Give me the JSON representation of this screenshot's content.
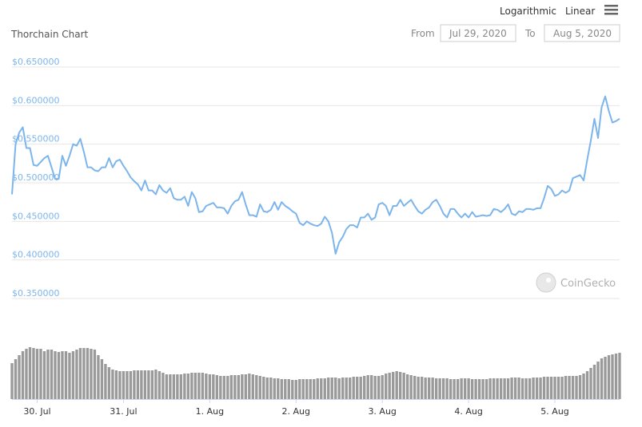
{
  "chart_data": {
    "type": "line",
    "title": "Thorchain Chart",
    "controls": {
      "scales": [
        "Logarithmic",
        "Linear"
      ],
      "from_label": "From",
      "from": "Jul 29, 2020",
      "to_label": "To",
      "to": "Aug 5, 2020"
    },
    "watermark": "CoinGecko",
    "color": "#7cb5ec",
    "ylim": [
      0.35,
      0.65
    ],
    "yticks": [
      {
        "value": 0.65,
        "label": "$0.650000"
      },
      {
        "value": 0.6,
        "label": "$0.600000"
      },
      {
        "value": 0.55,
        "label": "$0.550000"
      },
      {
        "value": 0.5,
        "label": "$0.500000"
      },
      {
        "value": 0.45,
        "label": "$0.450000"
      },
      {
        "value": 0.4,
        "label": "$0.400000"
      },
      {
        "value": 0.35,
        "label": "$0.350000"
      }
    ],
    "grid": true,
    "xlim": [
      0,
      169
    ],
    "xticks": [
      {
        "value": 7,
        "label": "30. Jul"
      },
      {
        "value": 31,
        "label": "31. Jul"
      },
      {
        "value": 55,
        "label": "1. Aug"
      },
      {
        "value": 79,
        "label": "2. Aug"
      },
      {
        "value": 103,
        "label": "3. Aug"
      },
      {
        "value": 127,
        "label": "4. Aug"
      },
      {
        "value": 151,
        "label": "5. Aug"
      }
    ],
    "x": [
      0,
      1,
      2,
      3,
      4,
      5,
      6,
      7,
      8,
      9,
      10,
      11,
      12,
      13,
      14,
      15,
      16,
      17,
      18,
      19,
      20,
      21,
      22,
      23,
      24,
      25,
      26,
      27,
      28,
      29,
      30,
      31,
      32,
      33,
      34,
      35,
      36,
      37,
      38,
      39,
      40,
      41,
      42,
      43,
      44,
      45,
      46,
      47,
      48,
      49,
      50,
      51,
      52,
      53,
      54,
      55,
      56,
      57,
      58,
      59,
      60,
      61,
      62,
      63,
      64,
      65,
      66,
      67,
      68,
      69,
      70,
      71,
      72,
      73,
      74,
      75,
      76,
      77,
      78,
      79,
      80,
      81,
      82,
      83,
      84,
      85,
      86,
      87,
      88,
      89,
      90,
      91,
      92,
      93,
      94,
      95,
      96,
      97,
      98,
      99,
      100,
      101,
      102,
      103,
      104,
      105,
      106,
      107,
      108,
      109,
      110,
      111,
      112,
      113,
      114,
      115,
      116,
      117,
      118,
      119,
      120,
      121,
      122,
      123,
      124,
      125,
      126,
      127,
      128,
      129,
      130,
      131,
      132,
      133,
      134,
      135,
      136,
      137,
      138,
      139,
      140,
      141,
      142,
      143,
      144,
      145,
      146,
      147,
      148,
      149,
      150,
      151,
      152,
      153,
      154,
      155,
      156,
      157,
      158,
      159,
      160,
      161,
      162,
      163,
      164,
      165,
      166,
      167,
      168,
      169
    ],
    "values": [
      0.485,
      0.55,
      0.565,
      0.572,
      0.545,
      0.545,
      0.523,
      0.522,
      0.527,
      0.532,
      0.535,
      0.52,
      0.505,
      0.505,
      0.535,
      0.522,
      0.535,
      0.55,
      0.548,
      0.557,
      0.54,
      0.52,
      0.52,
      0.516,
      0.515,
      0.52,
      0.52,
      0.532,
      0.52,
      0.528,
      0.53,
      0.522,
      0.515,
      0.507,
      0.502,
      0.498,
      0.49,
      0.503,
      0.49,
      0.49,
      0.485,
      0.497,
      0.49,
      0.487,
      0.493,
      0.48,
      0.478,
      0.478,
      0.482,
      0.47,
      0.488,
      0.48,
      0.462,
      0.463,
      0.47,
      0.472,
      0.474,
      0.468,
      0.468,
      0.467,
      0.46,
      0.47,
      0.476,
      0.478,
      0.488,
      0.472,
      0.458,
      0.458,
      0.456,
      0.472,
      0.463,
      0.462,
      0.465,
      0.475,
      0.465,
      0.475,
      0.47,
      0.467,
      0.463,
      0.46,
      0.448,
      0.445,
      0.45,
      0.447,
      0.445,
      0.444,
      0.447,
      0.456,
      0.45,
      0.435,
      0.408,
      0.423,
      0.43,
      0.44,
      0.445,
      0.445,
      0.442,
      0.455,
      0.455,
      0.46,
      0.452,
      0.455,
      0.472,
      0.474,
      0.47,
      0.458,
      0.47,
      0.47,
      0.478,
      0.47,
      0.474,
      0.478,
      0.47,
      0.463,
      0.46,
      0.465,
      0.468,
      0.475,
      0.478,
      0.47,
      0.46,
      0.455,
      0.466,
      0.466,
      0.46,
      0.455,
      0.46,
      0.455,
      0.462,
      0.456,
      0.457,
      0.458,
      0.457,
      0.458,
      0.466,
      0.465,
      0.462,
      0.466,
      0.472,
      0.46,
      0.458,
      0.463,
      0.462,
      0.466,
      0.466,
      0.465,
      0.467,
      0.467,
      0.48,
      0.496,
      0.492,
      0.483,
      0.485,
      0.49,
      0.487,
      0.49,
      0.506,
      0.508,
      0.51,
      0.503,
      0.53,
      0.555,
      0.583,
      0.558,
      0.598,
      0.612,
      0.593,
      0.578,
      0.58,
      0.583
    ],
    "volume": {
      "color": "#9a9a9a",
      "lim": [
        0,
        70
      ],
      "values": [
        45,
        50,
        55,
        60,
        63,
        65,
        64,
        63,
        63,
        60,
        62,
        62,
        60,
        59,
        60,
        60,
        58,
        60,
        62,
        64,
        64,
        64,
        63,
        62,
        55,
        50,
        44,
        40,
        37,
        36,
        35,
        35,
        35,
        35,
        36,
        36,
        36,
        36,
        36,
        36,
        37,
        35,
        33,
        31,
        31,
        31,
        31,
        31,
        32,
        32,
        33,
        33,
        33,
        33,
        32,
        31,
        31,
        30,
        29,
        29,
        29,
        30,
        30,
        30,
        31,
        31,
        32,
        31,
        30,
        29,
        28,
        27,
        27,
        26,
        26,
        25,
        25,
        25,
        24,
        24,
        25,
        25,
        25,
        25,
        25,
        26,
        26,
        26,
        27,
        27,
        27,
        26,
        27,
        27,
        27,
        28,
        28,
        28,
        29,
        30,
        30,
        29,
        29,
        30,
        32,
        33,
        34,
        35,
        34,
        33,
        31,
        30,
        29,
        28,
        28,
        27,
        27,
        27,
        26,
        26,
        26,
        26,
        25,
        25,
        25,
        26,
        26,
        26,
        25,
        25,
        25,
        25,
        25,
        26,
        26,
        26,
        26,
        26,
        26,
        27,
        27,
        27,
        26,
        26,
        26,
        27,
        27,
        27,
        28,
        28,
        28,
        28,
        28,
        28,
        29,
        29,
        29,
        29,
        30,
        32,
        35,
        39,
        43,
        47,
        51,
        53,
        55,
        56,
        57,
        58
      ]
    }
  }
}
